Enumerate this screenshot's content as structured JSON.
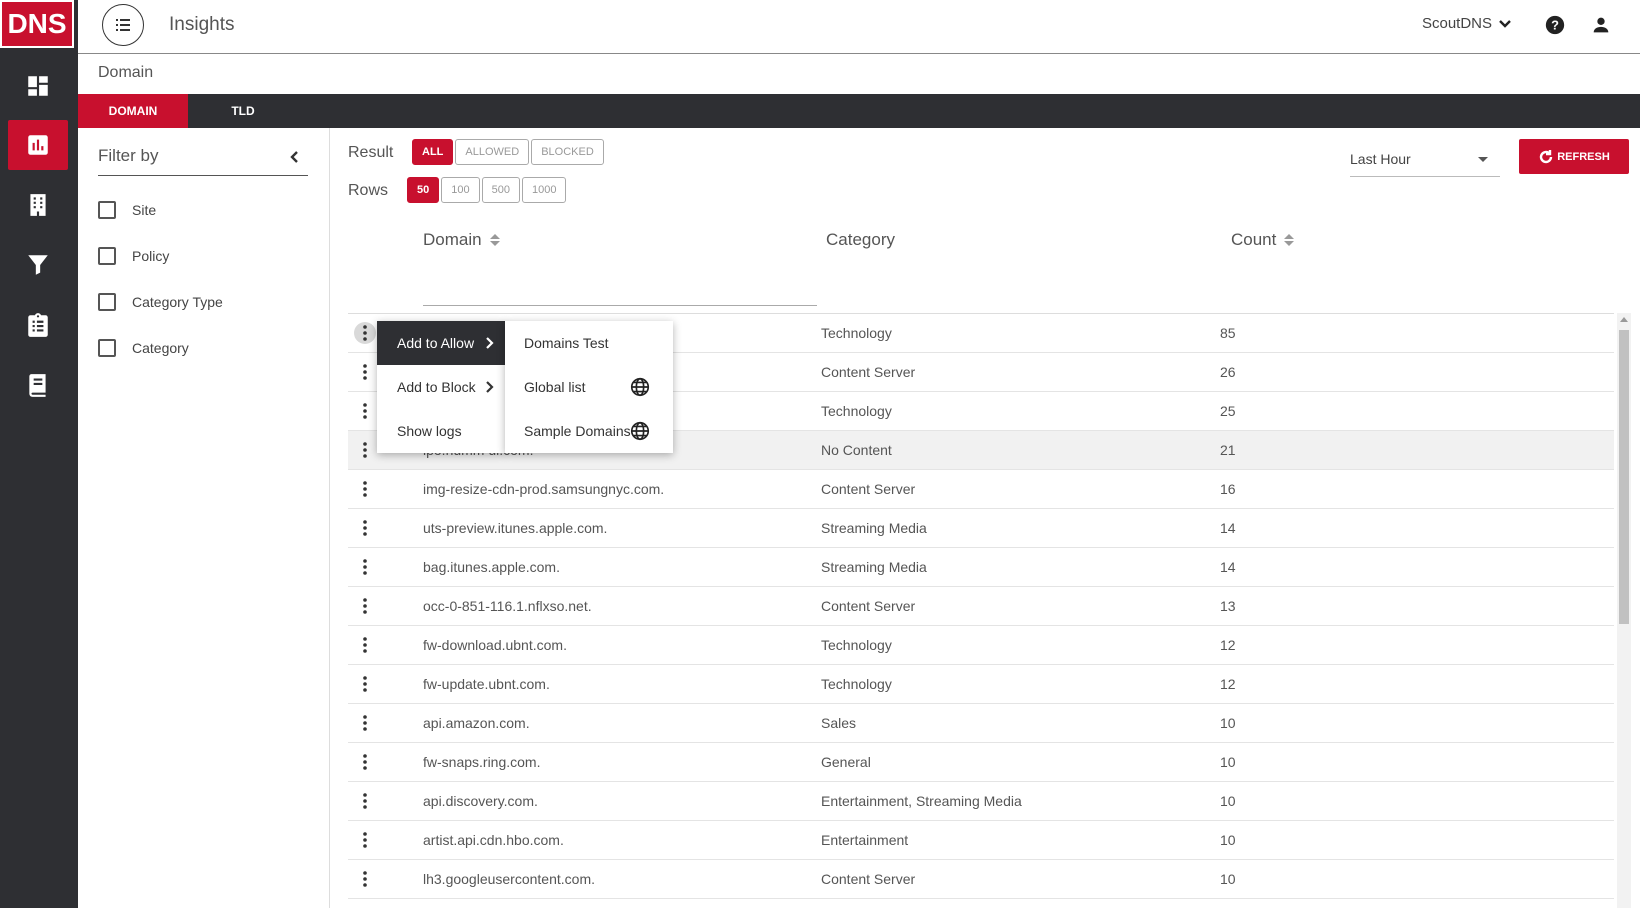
{
  "brand": {
    "logo_text": "DNS",
    "accent_color": "#c8102e",
    "dark_color": "#2e2f33"
  },
  "sidebar": {
    "items": [
      {
        "name": "dashboard-icon"
      },
      {
        "name": "insights-icon",
        "active": true
      },
      {
        "name": "building-icon"
      },
      {
        "name": "filter-icon"
      },
      {
        "name": "clipboard-icon"
      },
      {
        "name": "book-icon"
      }
    ]
  },
  "header": {
    "title": "Insights",
    "account": "ScoutDNS"
  },
  "section": {
    "title": "Domain"
  },
  "tabs": [
    {
      "label": "DOMAIN",
      "active": true
    },
    {
      "label": "TLD",
      "active": false
    }
  ],
  "filter": {
    "title": "Filter by",
    "items": [
      "Site",
      "Policy",
      "Category Type",
      "Category"
    ]
  },
  "result": {
    "label": "Result",
    "options": [
      "ALL",
      "ALLOWED",
      "BLOCKED"
    ],
    "selected": "ALL"
  },
  "rows_select": {
    "label": "Rows",
    "options": [
      "50",
      "100",
      "500",
      "1000"
    ],
    "selected": "50"
  },
  "time_range": {
    "value": "Last Hour"
  },
  "refresh": {
    "label": "REFRESH"
  },
  "table": {
    "columns": [
      "Domain",
      "Category",
      "Count"
    ],
    "rows": [
      {
        "domain": "",
        "category": "Technology",
        "count": "85"
      },
      {
        "domain": "",
        "category": "Content Server",
        "count": "26"
      },
      {
        "domain": "",
        "category": "Technology",
        "count": "25"
      },
      {
        "domain": "ipo.humm ui.com.",
        "category": "No Content",
        "count": "21"
      },
      {
        "domain": "img-resize-cdn-prod.samsungnyc.com.",
        "category": "Content Server",
        "count": "16"
      },
      {
        "domain": "uts-preview.itunes.apple.com.",
        "category": "Streaming Media",
        "count": "14"
      },
      {
        "domain": "bag.itunes.apple.com.",
        "category": "Streaming Media",
        "count": "14"
      },
      {
        "domain": "occ-0-851-116.1.nflxso.net.",
        "category": "Content Server",
        "count": "13"
      },
      {
        "domain": "fw-download.ubnt.com.",
        "category": "Technology",
        "count": "12"
      },
      {
        "domain": "fw-update.ubnt.com.",
        "category": "Technology",
        "count": "12"
      },
      {
        "domain": "api.amazon.com.",
        "category": "Sales",
        "count": "10"
      },
      {
        "domain": "fw-snaps.ring.com.",
        "category": "General",
        "count": "10"
      },
      {
        "domain": "api.discovery.com.",
        "category": "Entertainment, Streaming Media",
        "count": "10"
      },
      {
        "domain": "artist.api.cdn.hbo.com.",
        "category": "Entertainment",
        "count": "10"
      },
      {
        "domain": "lh3.googleusercontent.com.",
        "category": "Content Server",
        "count": "10"
      }
    ]
  },
  "context_menu": {
    "items": [
      "Add to Allow",
      "Add to Block",
      "Show logs"
    ],
    "active": "Add to Allow"
  },
  "submenu": {
    "items": [
      {
        "label": "Domains Test",
        "icon": ""
      },
      {
        "label": "Global list",
        "icon": "globe-icon"
      },
      {
        "label": "Sample Domains",
        "icon": "globe-icon"
      }
    ]
  }
}
